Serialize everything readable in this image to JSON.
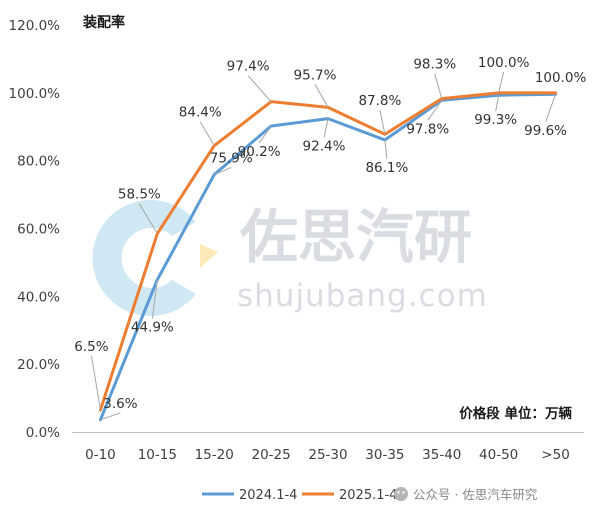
{
  "chart_data": {
    "type": "line",
    "title": "装配率",
    "unit_note": "价格段 单位：万辆",
    "categories": [
      "0-10",
      "10-15",
      "15-20",
      "20-25",
      "25-30",
      "30-35",
      "35-40",
      "40-50",
      ">50"
    ],
    "yticks": [
      "0.0%",
      "20.0%",
      "40.0%",
      "60.0%",
      "80.0%",
      "100.0%",
      "120.0%"
    ],
    "ylim": [
      0,
      120
    ],
    "grid": false,
    "legend_position": "bottom",
    "series": [
      {
        "name": "2024.1-4",
        "color": "#5B9BD5",
        "values": [
          3.6,
          44.9,
          75.9,
          90.2,
          92.4,
          86.1,
          97.8,
          99.3,
          99.6
        ],
        "labels": [
          "3.6%",
          "44.9%",
          "75.9%",
          "90.2%",
          "92.4%",
          "86.1%",
          "97.8%",
          "99.3%",
          "99.6%"
        ]
      },
      {
        "name": "2025.1-4",
        "color": "#ED7D31",
        "values": [
          6.5,
          58.5,
          84.4,
          97.4,
          95.7,
          87.8,
          98.3,
          100.0,
          100.0
        ],
        "labels": [
          "6.5%",
          "58.5%",
          "84.4%",
          "97.4%",
          "95.7%",
          "87.8%",
          "98.3%",
          "100.0%",
          "100.0%"
        ]
      }
    ]
  },
  "watermark": {
    "cn": "佐思汽研",
    "en": "shujubang.com"
  },
  "source_text": "公众号 · 佐思汽车研究"
}
